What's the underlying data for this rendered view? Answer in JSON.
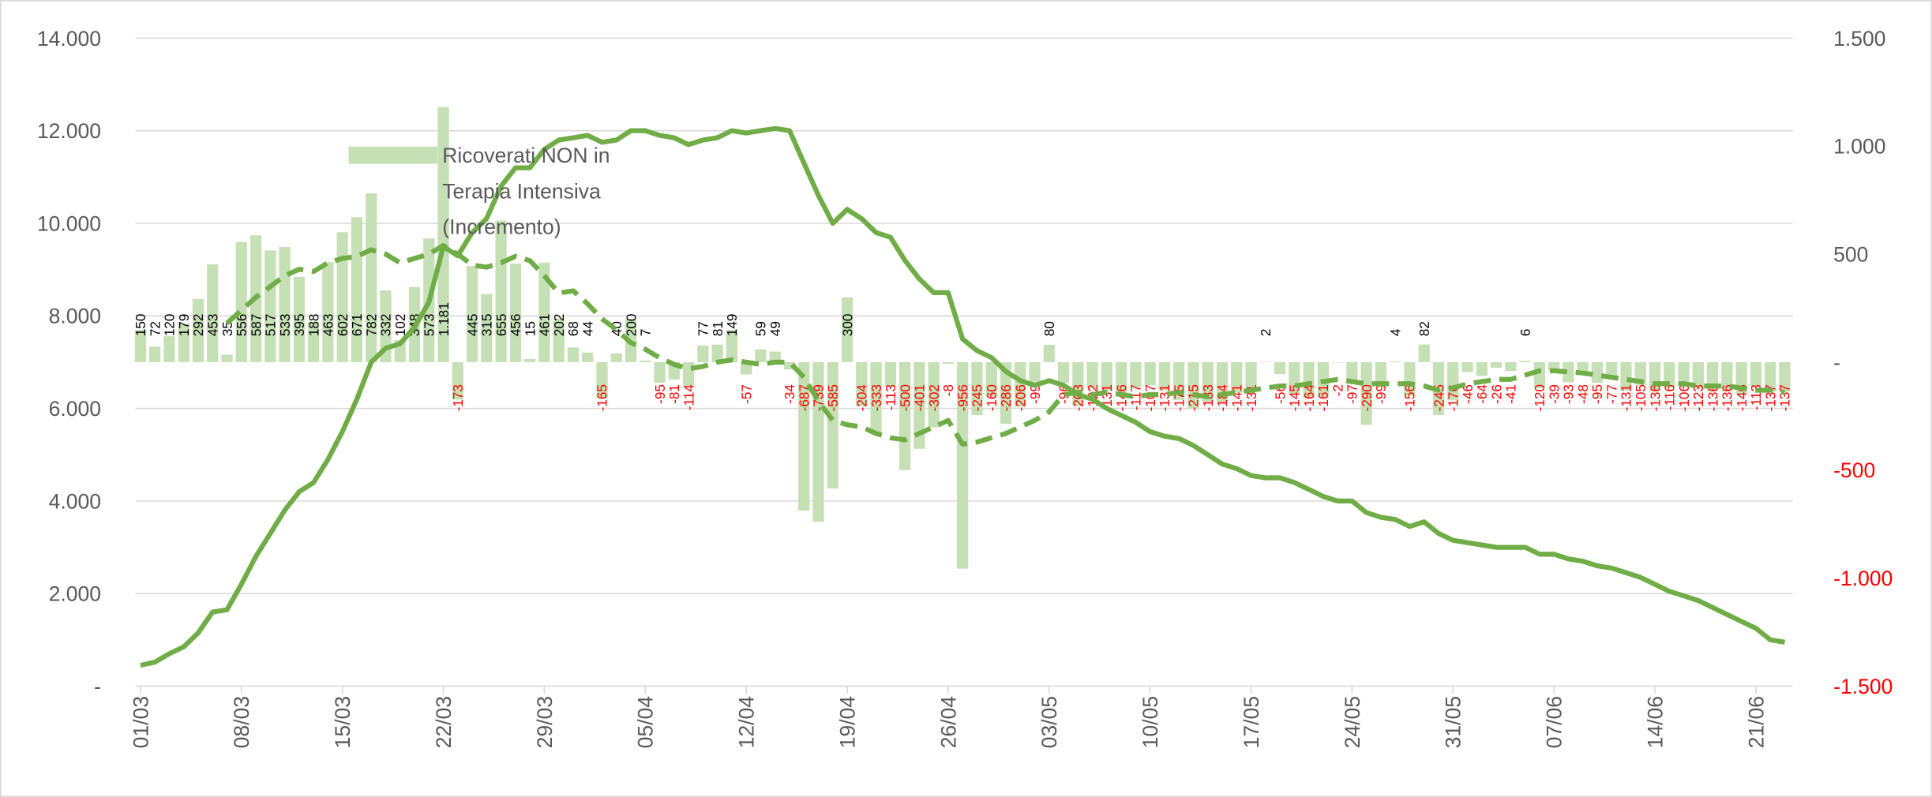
{
  "chart_data": {
    "type": "bar",
    "categories": [
      "01/03",
      null,
      null,
      null,
      null,
      null,
      null,
      "08/03",
      null,
      null,
      null,
      null,
      null,
      null,
      "15/03",
      null,
      null,
      null,
      null,
      null,
      null,
      "22/03",
      null,
      null,
      null,
      null,
      null,
      null,
      "29/03",
      null,
      null,
      null,
      null,
      null,
      null,
      "05/04",
      null,
      null,
      null,
      null,
      null,
      null,
      "12/04",
      null,
      null,
      null,
      null,
      null,
      null,
      "19/04",
      null,
      null,
      null,
      null,
      null,
      null,
      "26/04",
      null,
      null,
      null,
      null,
      null,
      null,
      "03/05",
      null,
      null,
      null,
      null,
      null,
      null,
      "10/05",
      null,
      null,
      null,
      null,
      null,
      null,
      "17/05",
      null,
      null,
      null,
      null,
      null,
      null,
      "24/05",
      null,
      null,
      null,
      null,
      null,
      null,
      "31/05",
      null,
      null,
      null,
      null,
      null,
      null,
      "07/06",
      null,
      null,
      null,
      null,
      null,
      null,
      "14/06",
      null,
      null,
      null,
      null,
      null,
      null,
      "21/06",
      null,
      null
    ],
    "series": [
      {
        "name": "Ricoverati NON in Terapia Intensiva (Incremento)",
        "type": "bar",
        "axis": "y2",
        "color": "#c5e0b4",
        "values": [
          150,
          72,
          120,
          179,
          292,
          453,
          35,
          556,
          587,
          517,
          533,
          395,
          188,
          463,
          602,
          671,
          782,
          332,
          102,
          348,
          573,
          1181,
          -173,
          445,
          315,
          655,
          456,
          15,
          461,
          202,
          68,
          44,
          -165,
          40,
          200,
          7,
          -95,
          -81,
          -114,
          77,
          81,
          149,
          -57,
          59,
          49,
          -34,
          -687,
          -739,
          -585,
          300,
          -204,
          -333,
          -113,
          -500,
          -401,
          -302,
          -8,
          -956,
          -245,
          -160,
          -286,
          -206,
          -99,
          80,
          -96,
          -203,
          -122,
          -131,
          -146,
          -117,
          -107,
          -131,
          -175,
          -215,
          -183,
          -184,
          -141,
          -131,
          2,
          -56,
          -145,
          -164,
          -161,
          -2,
          -97,
          -290,
          -99,
          4,
          -156,
          82,
          -245,
          -176,
          -46,
          -64,
          -26,
          -41,
          6,
          -120,
          -39,
          -93,
          -48,
          -95,
          -77,
          -131,
          -105,
          -136,
          -116,
          -106,
          -123,
          -136,
          -136,
          -146,
          -113,
          -137,
          -137
        ],
        "value_labels": [
          null,
          null,
          null,
          null,
          null,
          null,
          null,
          null,
          null,
          null,
          null,
          null,
          null,
          null,
          null,
          null,
          null,
          null,
          null,
          null,
          null,
          "1.181",
          null,
          null,
          null,
          null,
          null,
          null,
          null,
          null,
          null,
          null,
          null,
          null,
          null,
          null,
          null,
          null,
          null,
          null,
          null,
          null,
          null,
          null,
          null,
          null,
          null,
          null,
          null,
          null,
          null,
          null,
          null,
          null,
          null,
          null,
          null,
          null,
          null,
          null,
          null,
          null,
          null,
          null,
          null,
          null,
          null,
          null,
          null,
          null,
          null,
          null,
          null,
          null,
          null,
          null,
          null,
          null,
          null,
          null,
          null,
          null,
          null,
          null,
          null,
          null,
          null,
          null,
          null,
          null,
          null,
          null,
          null,
          null,
          null,
          null,
          null,
          null,
          null,
          null,
          null,
          null,
          null,
          null,
          null,
          null,
          null,
          null,
          null,
          null,
          null,
          null,
          null,
          null,
          null
        ]
      },
      {
        "type": "line",
        "axis": "y",
        "color": "#70ad47",
        "dashed": false,
        "values": [
          450,
          520,
          700,
          850,
          1150,
          1600,
          1650,
          2200,
          2800,
          3300,
          3800,
          4200,
          4400,
          4900,
          5500,
          6200,
          7000,
          7300,
          7400,
          7750,
          8300,
          9500,
          9300,
          9800,
          10100,
          10800,
          11200,
          11200,
          11600,
          11800,
          11850,
          11900,
          11750,
          11800,
          12000,
          12000,
          11900,
          11850,
          11700,
          11800,
          11850,
          12000,
          11950,
          12000,
          12050,
          12000,
          11300,
          10600,
          10000,
          10300,
          10100,
          9800,
          9700,
          9200,
          8800,
          8500,
          8500,
          7500,
          7250,
          7100,
          6800,
          6600,
          6500,
          6600,
          6500,
          6300,
          6200,
          6000,
          5850,
          5700,
          5500,
          5400,
          5350,
          5200,
          5000,
          4800,
          4700,
          4550,
          4500,
          4500,
          4400,
          4250,
          4100,
          4000,
          4000,
          3750,
          3650,
          3600,
          3450,
          3550,
          3300,
          3150,
          3100,
          3050,
          3000,
          3000,
          3000,
          2850,
          2850,
          2750,
          2700,
          2600,
          2550,
          2450,
          2350,
          2200,
          2050,
          1950,
          1850,
          1700,
          1550,
          1400,
          1250,
          1000,
          950
        ]
      },
      {
        "type": "line",
        "axis": "y2",
        "color": "#70ad47",
        "dashed": true,
        "values": [
          null,
          null,
          null,
          null,
          null,
          null,
          180,
          240,
          300,
          350,
          400,
          430,
          420,
          460,
          480,
          490,
          520,
          500,
          460,
          480,
          500,
          540,
          500,
          450,
          440,
          460,
          490,
          470,
          400,
          320,
          330,
          270,
          200,
          150,
          90,
          60,
          20,
          -10,
          -30,
          -20,
          0,
          10,
          0,
          -10,
          0,
          0,
          -70,
          -180,
          -270,
          -290,
          -300,
          -330,
          -350,
          -360,
          -330,
          -300,
          -270,
          -380,
          -370,
          -350,
          -330,
          -300,
          -270,
          -230,
          -150,
          -140,
          -150,
          -140,
          -150,
          -160,
          -150,
          -150,
          -140,
          -150,
          -160,
          -150,
          -140,
          -130,
          -120,
          -110,
          -110,
          -100,
          -90,
          -80,
          -90,
          -100,
          -100,
          -100,
          -100,
          -110,
          -130,
          -120,
          -100,
          -90,
          -80,
          -80,
          -60,
          -40,
          -40,
          -45,
          -50,
          -60,
          -70,
          -80,
          -90,
          -100,
          -100,
          -100,
          -110,
          -110,
          -110,
          -120,
          -130,
          -130,
          -140
        ]
      }
    ],
    "ylim": [
      0,
      14000
    ],
    "yticks": [
      {
        "value": 0,
        "label": "-"
      },
      {
        "value": 2000,
        "label": "2.000"
      },
      {
        "value": 4000,
        "label": "4.000"
      },
      {
        "value": 6000,
        "label": "6.000"
      },
      {
        "value": 8000,
        "label": "8.000"
      },
      {
        "value": 10000,
        "label": "10.000"
      },
      {
        "value": 12000,
        "label": "12.000"
      },
      {
        "value": 14000,
        "label": "14.000"
      }
    ],
    "y2lim": [
      -1500,
      1500
    ],
    "y2ticks": [
      {
        "value": -1500,
        "label": "-1.500"
      },
      {
        "value": -1000,
        "label": "-1.000"
      },
      -500,
      {
        "value": 0,
        "label": "-"
      },
      500,
      {
        "value": 1000,
        "label": "1.000"
      },
      {
        "value": 1500,
        "label": "1.500"
      }
    ],
    "grid": true,
    "legend": "upper left",
    "negative_label_color": "#ff0000"
  }
}
